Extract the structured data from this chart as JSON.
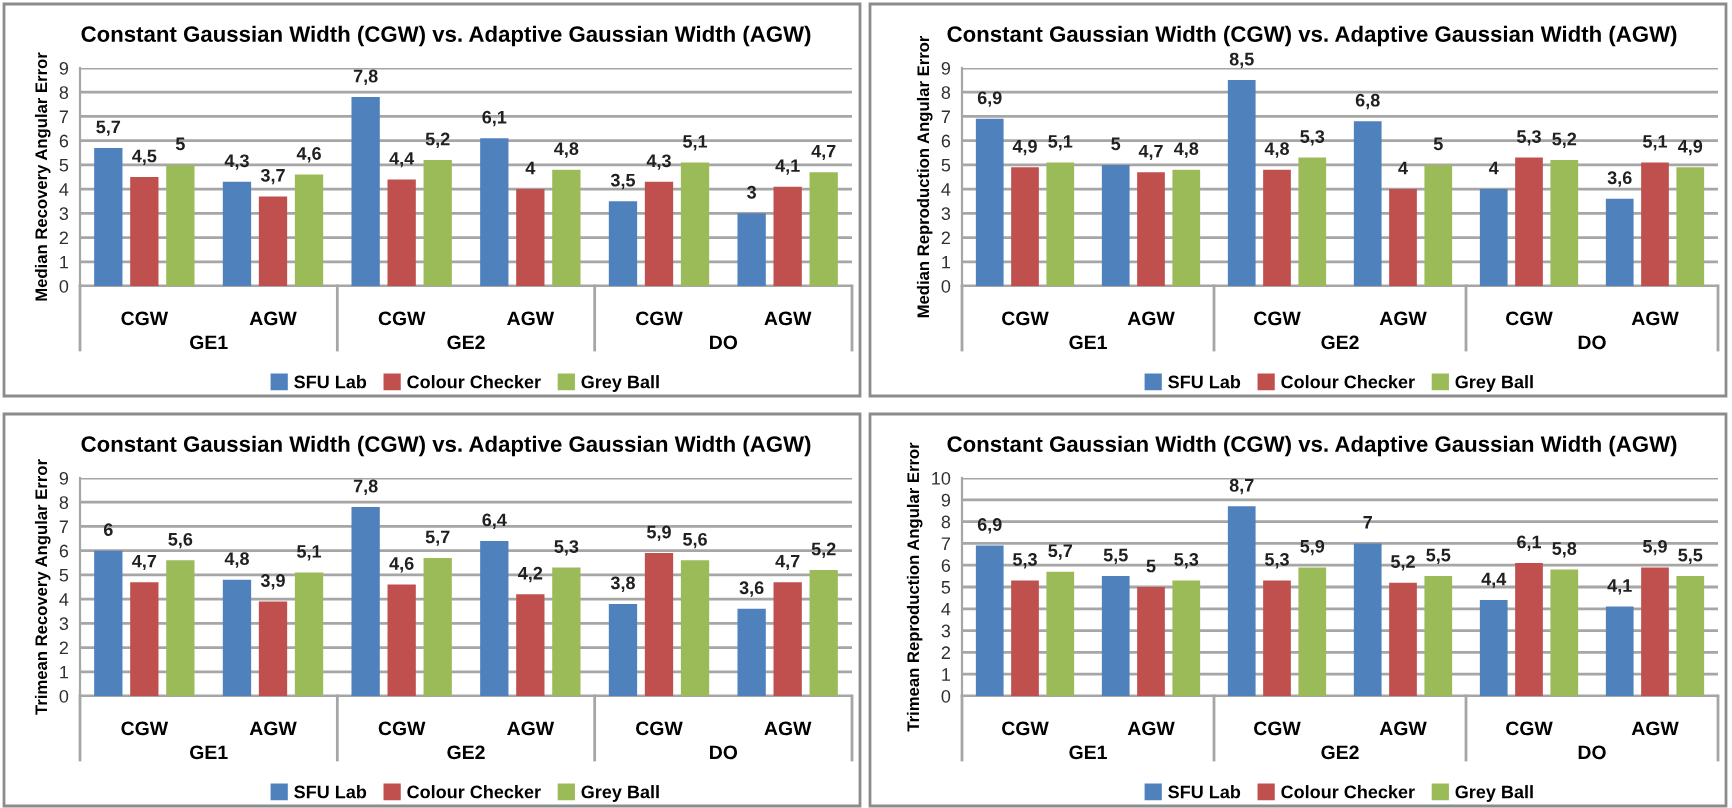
{
  "chart_data": [
    {
      "type": "bar",
      "title": "Constant Gaussian Width (CGW) vs. Adaptive Gaussian Width (AGW)",
      "ylabel": "Median Recovery Angular Error",
      "categories": [
        "CGW",
        "AGW",
        "CGW",
        "AGW",
        "CGW",
        "AGW"
      ],
      "annotations": [
        "GE1",
        "GE2",
        "DO"
      ],
      "ylim": [
        0,
        9
      ],
      "yticks": [
        0,
        1,
        2,
        3,
        4,
        5,
        6,
        7,
        8,
        9
      ],
      "grid": "y",
      "legend": "bottom",
      "series": [
        {
          "name": "SFU Lab",
          "color": "#4f81bd",
          "values": [
            5.7,
            4.3,
            7.8,
            6.1,
            3.5,
            3
          ],
          "value_labels": [
            "5,7",
            "4,3",
            "7,8",
            "6,1",
            "3,5",
            "3"
          ]
        },
        {
          "name": "Colour Checker",
          "color": "#c0504d",
          "values": [
            4.5,
            3.7,
            4.4,
            4,
            4.3,
            4.1
          ],
          "value_labels": [
            "4,5",
            "3,7",
            "4,4",
            "4",
            "4,3",
            "4,1"
          ]
        },
        {
          "name": "Grey Ball",
          "color": "#9bbb59",
          "values": [
            5,
            4.6,
            5.2,
            4.8,
            5.1,
            4.7
          ],
          "value_labels": [
            "5",
            "4,6",
            "5,2",
            "4,8",
            "5,1",
            "4,7"
          ]
        }
      ]
    },
    {
      "type": "bar",
      "title": "Constant Gaussian Width (CGW) vs. Adaptive Gaussian Width (AGW)",
      "ylabel": "Median Reproduction Angular Error",
      "categories": [
        "CGW",
        "AGW",
        "CGW",
        "AGW",
        "CGW",
        "AGW"
      ],
      "annotations": [
        "GE1",
        "GE2",
        "DO"
      ],
      "ylim": [
        0,
        9
      ],
      "yticks": [
        0,
        1,
        2,
        3,
        4,
        5,
        6,
        7,
        8,
        9
      ],
      "grid": "y",
      "legend": "bottom",
      "series": [
        {
          "name": "SFU Lab",
          "color": "#4f81bd",
          "values": [
            6.9,
            5,
            8.5,
            6.8,
            4,
            3.6
          ],
          "value_labels": [
            "6,9",
            "5",
            "8,5",
            "6,8",
            "4",
            "3,6"
          ]
        },
        {
          "name": "Colour Checker",
          "color": "#c0504d",
          "values": [
            4.9,
            4.7,
            4.8,
            4,
            5.3,
            5.1
          ],
          "value_labels": [
            "4,9",
            "4,7",
            "4,8",
            "4",
            "5,3",
            "5,1"
          ]
        },
        {
          "name": "Grey Ball",
          "color": "#9bbb59",
          "values": [
            5.1,
            4.8,
            5.3,
            5,
            5.2,
            4.9
          ],
          "value_labels": [
            "5,1",
            "4,8",
            "5,3",
            "5",
            "5,2",
            "4,9"
          ]
        }
      ]
    },
    {
      "type": "bar",
      "title": "Constant Gaussian Width (CGW) vs. Adaptive Gaussian Width (AGW)",
      "ylabel": "Trimean Recovery Angular Error",
      "categories": [
        "CGW",
        "AGW",
        "CGW",
        "AGW",
        "CGW",
        "AGW"
      ],
      "annotations": [
        "GE1",
        "GE2",
        "DO"
      ],
      "ylim": [
        0,
        9
      ],
      "yticks": [
        0,
        1,
        2,
        3,
        4,
        5,
        6,
        7,
        8,
        9
      ],
      "grid": "y",
      "legend": "bottom",
      "series": [
        {
          "name": "SFU Lab",
          "color": "#4f81bd",
          "values": [
            6,
            4.8,
            7.8,
            6.4,
            3.8,
            3.6
          ],
          "value_labels": [
            "6",
            "4,8",
            "7,8",
            "6,4",
            "3,8",
            "3,6"
          ]
        },
        {
          "name": "Colour Checker",
          "color": "#c0504d",
          "values": [
            4.7,
            3.9,
            4.6,
            4.2,
            5.9,
            4.7
          ],
          "value_labels": [
            "4,7",
            "3,9",
            "4,6",
            "4,2",
            "5,9",
            "4,7"
          ]
        },
        {
          "name": "Grey Ball",
          "color": "#9bbb59",
          "values": [
            5.6,
            5.1,
            5.7,
            5.3,
            5.6,
            5.2
          ],
          "value_labels": [
            "5,6",
            "5,1",
            "5,7",
            "5,3",
            "5,6",
            "5,2"
          ]
        }
      ]
    },
    {
      "type": "bar",
      "title": "Constant Gaussian Width (CGW) vs. Adaptive Gaussian Width (AGW)",
      "ylabel": "Trimean Reproduction Angular Error",
      "categories": [
        "CGW",
        "AGW",
        "CGW",
        "AGW",
        "CGW",
        "AGW"
      ],
      "annotations": [
        "GE1",
        "GE2",
        "DO"
      ],
      "ylim": [
        0,
        10
      ],
      "yticks": [
        0,
        1,
        2,
        3,
        4,
        5,
        6,
        7,
        8,
        9,
        10
      ],
      "grid": "y",
      "legend": "bottom",
      "series": [
        {
          "name": "SFU Lab",
          "color": "#4f81bd",
          "values": [
            6.9,
            5.5,
            8.7,
            7,
            4.4,
            4.1
          ],
          "value_labels": [
            "6,9",
            "5,5",
            "8,7",
            "7",
            "4,4",
            "4,1"
          ]
        },
        {
          "name": "Colour Checker",
          "color": "#c0504d",
          "values": [
            5.3,
            5,
            5.3,
            5.2,
            6.1,
            5.9
          ],
          "value_labels": [
            "5,3",
            "5",
            "5,3",
            "5,2",
            "6,1",
            "5,9"
          ]
        },
        {
          "name": "Grey Ball",
          "color": "#9bbb59",
          "values": [
            5.7,
            5.3,
            5.9,
            5.5,
            5.8,
            5.5
          ],
          "value_labels": [
            "5,7",
            "5,3",
            "5,9",
            "5,5",
            "5,8",
            "5,5"
          ]
        }
      ]
    }
  ]
}
